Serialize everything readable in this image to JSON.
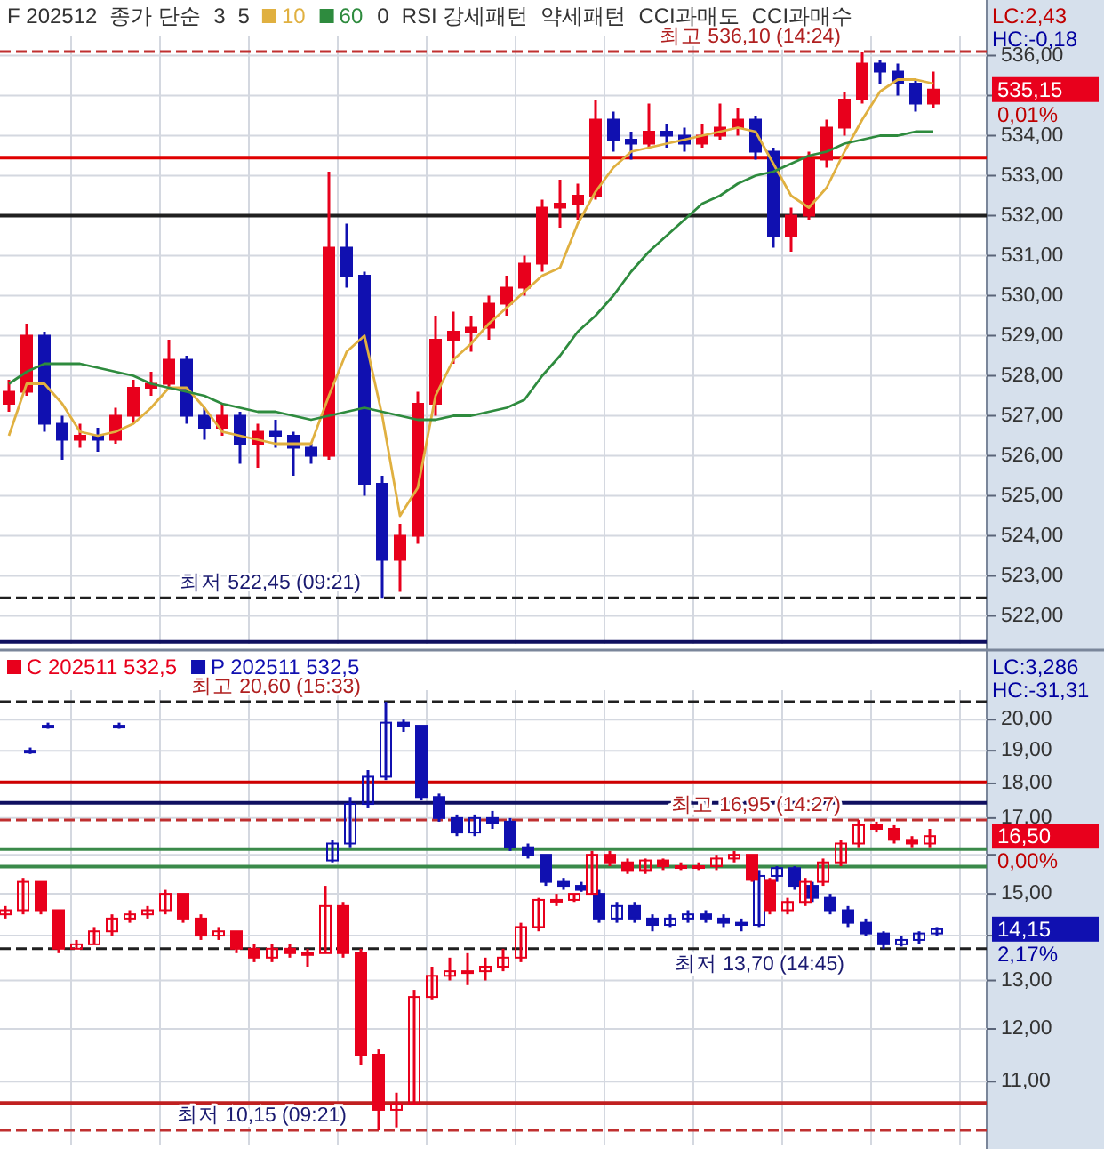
{
  "chart_data": [
    {
      "type": "candlestick",
      "categories": [
        null,
        null,
        null,
        null,
        null,
        null,
        null,
        null,
        null,
        null,
        null,
        null,
        null,
        null,
        null,
        null,
        null,
        null,
        null,
        null,
        null,
        null,
        null,
        null,
        null,
        null,
        null,
        null,
        null,
        null,
        null,
        null,
        null,
        null,
        null,
        null,
        null,
        null,
        null,
        null,
        null,
        null,
        null,
        null,
        null,
        null,
        null,
        null,
        null,
        null,
        null,
        null,
        null
      ],
      "ohlc": [
        [
          527.3,
          527.9,
          527.1,
          527.6
        ],
        [
          527.6,
          529.3,
          527.5,
          529.0
        ],
        [
          529.0,
          529.1,
          526.6,
          526.8
        ],
        [
          526.8,
          527.0,
          525.9,
          526.4
        ],
        [
          526.4,
          526.8,
          526.2,
          526.5
        ],
        [
          526.5,
          526.7,
          526.1,
          526.4
        ],
        [
          526.4,
          527.2,
          526.3,
          527.0
        ],
        [
          527.0,
          527.9,
          526.8,
          527.7
        ],
        [
          527.7,
          528.1,
          527.5,
          527.8
        ],
        [
          527.8,
          528.9,
          527.7,
          528.4
        ],
        [
          528.4,
          528.5,
          526.8,
          527.0
        ],
        [
          527.0,
          527.2,
          526.4,
          526.7
        ],
        [
          526.7,
          527.3,
          526.5,
          527.0
        ],
        [
          527.0,
          527.1,
          525.8,
          526.3
        ],
        [
          526.3,
          526.8,
          525.7,
          526.6
        ],
        [
          526.6,
          526.9,
          526.2,
          526.5
        ],
        [
          526.5,
          526.6,
          525.5,
          526.2
        ],
        [
          526.2,
          526.3,
          525.8,
          526.0
        ],
        [
          526.0,
          533.1,
          525.9,
          531.2
        ],
        [
          531.2,
          531.8,
          530.2,
          530.5
        ],
        [
          530.5,
          530.6,
          525.0,
          525.3
        ],
        [
          525.3,
          525.5,
          522.45,
          523.4
        ],
        [
          523.4,
          524.3,
          522.6,
          524.0
        ],
        [
          524.0,
          527.6,
          523.8,
          527.3
        ],
        [
          527.3,
          529.5,
          527.0,
          528.9
        ],
        [
          528.9,
          529.6,
          528.3,
          529.1
        ],
        [
          529.1,
          529.5,
          528.6,
          529.2
        ],
        [
          529.2,
          530.0,
          528.9,
          529.8
        ],
        [
          529.8,
          530.5,
          529.5,
          530.2
        ],
        [
          530.2,
          531.0,
          530.0,
          530.8
        ],
        [
          530.8,
          532.4,
          530.6,
          532.2
        ],
        [
          532.2,
          532.9,
          531.7,
          532.3
        ],
        [
          532.3,
          532.8,
          531.9,
          532.5
        ],
        [
          532.5,
          534.9,
          532.4,
          534.4
        ],
        [
          534.4,
          534.6,
          533.6,
          533.9
        ],
        [
          533.9,
          534.1,
          533.4,
          533.8
        ],
        [
          533.8,
          534.8,
          533.7,
          534.1
        ],
        [
          534.1,
          534.3,
          533.7,
          534.0
        ],
        [
          534.0,
          534.2,
          533.6,
          533.8
        ],
        [
          533.8,
          534.3,
          533.7,
          534.0
        ],
        [
          534.0,
          534.8,
          533.9,
          534.2
        ],
        [
          534.2,
          534.7,
          534.0,
          534.4
        ],
        [
          534.4,
          534.5,
          533.4,
          533.6
        ],
        [
          533.6,
          533.7,
          531.2,
          531.5
        ],
        [
          531.5,
          532.2,
          531.1,
          532.0
        ],
        [
          532.0,
          533.6,
          531.9,
          533.4
        ],
        [
          533.4,
          534.4,
          533.2,
          534.2
        ],
        [
          534.2,
          535.1,
          534.0,
          534.9
        ],
        [
          534.9,
          536.1,
          534.8,
          535.8
        ],
        [
          535.8,
          535.9,
          535.3,
          535.6
        ],
        [
          535.6,
          535.8,
          535.0,
          535.3
        ],
        [
          535.3,
          535.4,
          534.6,
          534.8
        ],
        [
          534.8,
          535.6,
          534.7,
          535.15
        ]
      ],
      "colors": [
        "#e8001c",
        "#e8001c",
        "#1010b0",
        "#1010b0",
        "#e8001c",
        "#1010b0",
        "#e8001c",
        "#e8001c",
        "#e8001c",
        "#e8001c",
        "#1010b0",
        "#1010b0",
        "#e8001c",
        "#1010b0",
        "#e8001c",
        "#1010b0",
        "#1010b0",
        "#1010b0",
        "#e8001c",
        "#1010b0",
        "#1010b0",
        "#1010b0",
        "#e8001c",
        "#e8001c",
        "#e8001c",
        "#e8001c",
        "#e8001c",
        "#e8001c",
        "#e8001c",
        "#e8001c",
        "#e8001c",
        "#e8001c",
        "#e8001c",
        "#e8001c",
        "#1010b0",
        "#1010b0",
        "#e8001c",
        "#1010b0",
        "#1010b0",
        "#e8001c",
        "#e8001c",
        "#e8001c",
        "#1010b0",
        "#1010b0",
        "#e8001c",
        "#e8001c",
        "#e8001c",
        "#e8001c",
        "#e8001c",
        "#1010b0",
        "#1010b0",
        "#1010b0",
        "#e8001c"
      ],
      "series": [
        {
          "name": "10",
          "type": "line",
          "color": "#e0b040",
          "values": [
            526.5,
            527.8,
            527.8,
            527.3,
            526.6,
            526.5,
            526.6,
            526.8,
            527.2,
            527.7,
            527.7,
            527.2,
            526.6,
            526.5,
            526.4,
            526.3,
            526.3,
            526.3,
            527.5,
            528.6,
            529.0,
            527.0,
            524.5,
            525.2,
            527.5,
            528.4,
            528.8,
            529.3,
            529.7,
            530.1,
            530.5,
            530.7,
            531.8,
            532.6,
            533.2,
            533.6,
            533.7,
            533.8,
            533.9,
            534.0,
            534.1,
            534.2,
            534.1,
            533.3,
            532.5,
            532.2,
            532.7,
            533.6,
            534.4,
            535.1,
            535.4,
            535.4,
            535.3
          ]
        },
        {
          "name": "60",
          "type": "line",
          "color": "#2e8b3e",
          "values": [
            527.8,
            528.1,
            528.3,
            528.3,
            528.3,
            528.2,
            528.1,
            528.0,
            527.8,
            527.7,
            527.6,
            527.5,
            527.3,
            527.2,
            527.1,
            527.1,
            527.0,
            526.9,
            527.0,
            527.1,
            527.2,
            527.1,
            527.0,
            526.9,
            526.9,
            527.0,
            527.0,
            527.1,
            527.2,
            527.4,
            528.0,
            528.5,
            529.1,
            529.5,
            530.0,
            530.6,
            531.1,
            531.5,
            531.9,
            532.3,
            532.5,
            532.8,
            533.0,
            533.1,
            533.3,
            533.5,
            533.6,
            533.8,
            533.9,
            534.0,
            534.0,
            534.1,
            534.1
          ]
        }
      ],
      "ylim": [
        521.3,
        536.5
      ],
      "yticks": [
        {
          "value": 522,
          "label": "522,00"
        },
        {
          "value": 523,
          "label": "523,00"
        },
        {
          "value": 524,
          "label": "524,00"
        },
        {
          "value": 525,
          "label": "525,00"
        },
        {
          "value": 526,
          "label": "526,00"
        },
        {
          "value": 527,
          "label": "527,00"
        },
        {
          "value": 528,
          "label": "528,00"
        },
        {
          "value": 529,
          "label": "529,00"
        },
        {
          "value": 530,
          "label": "530,00"
        },
        {
          "value": 531,
          "label": "531,00"
        },
        {
          "value": 532,
          "label": "532,00"
        },
        {
          "value": 533,
          "label": "533,00"
        },
        {
          "value": 534,
          "label": "534,00"
        },
        {
          "value": 535,
          "label": null
        },
        {
          "value": 536,
          "label": "536,00"
        }
      ],
      "tick_labels": "y",
      "grid": true,
      "legend": "top left",
      "ref_lines": [
        {
          "axis": "y",
          "value": 536.1,
          "color": "#c03030",
          "line_style": "dashed"
        },
        {
          "axis": "y",
          "value": 533.45,
          "color": "#e00000",
          "line_style": "solid"
        },
        {
          "axis": "y",
          "value": 532.0,
          "color": "#202020",
          "line_style": "solid"
        },
        {
          "axis": "y",
          "value": 522.45,
          "color": "#202020",
          "line_style": "dashed"
        },
        {
          "axis": "y",
          "value": 521.35,
          "color": "#101060",
          "line_style": "solid"
        }
      ],
      "annotations": [
        "F 202512",
        "종가 단순",
        "3",
        "5",
        "0",
        "RSI 강세패턴",
        "약세패턴",
        "CCI과매도",
        "CCI과매수",
        "LC:2,43",
        "HC:-0,18",
        "535,15",
        "0,01%",
        {
          "text": "최고 536,10 (14:24)",
          "y": 536.1
        },
        {
          "text": "최저 522,45 (09:21)",
          "y": 522.45
        }
      ]
    },
    {
      "type": "candlestick",
      "categories": [
        null,
        null,
        null,
        null,
        null,
        null,
        null,
        null,
        null,
        null,
        null,
        null,
        null,
        null,
        null,
        null,
        null,
        null,
        null,
        null,
        null,
        null,
        null,
        null,
        null,
        null,
        null,
        null,
        null,
        null,
        null,
        null,
        null,
        null,
        null,
        null,
        null,
        null,
        null,
        null,
        null,
        null,
        null,
        null,
        null,
        null,
        null,
        null,
        null,
        null,
        null,
        null,
        null
      ],
      "series": [
        {
          "name": "C 202511 532,5",
          "color": "#e8001c",
          "ohlc": [
            [
              14.5,
              14.7,
              14.4,
              14.6
            ],
            [
              14.6,
              15.4,
              14.5,
              15.3
            ],
            [
              15.3,
              15.3,
              14.5,
              14.6
            ],
            [
              14.6,
              14.6,
              13.6,
              13.7
            ],
            [
              13.7,
              13.9,
              13.7,
              13.8
            ],
            [
              13.8,
              14.2,
              13.8,
              14.1
            ],
            [
              14.1,
              14.5,
              14.0,
              14.4
            ],
            [
              14.4,
              14.6,
              14.3,
              14.5
            ],
            [
              14.5,
              14.7,
              14.4,
              14.6
            ],
            [
              14.6,
              15.1,
              14.5,
              15.0
            ],
            [
              15.0,
              15.0,
              14.3,
              14.4
            ],
            [
              14.4,
              14.5,
              13.9,
              14.0
            ],
            [
              14.0,
              14.2,
              13.9,
              14.1
            ],
            [
              14.1,
              14.1,
              13.6,
              13.7
            ],
            [
              13.7,
              13.8,
              13.4,
              13.5
            ],
            [
              13.5,
              13.8,
              13.4,
              13.7
            ],
            [
              13.7,
              13.8,
              13.5,
              13.6
            ],
            [
              13.6,
              13.7,
              13.3,
              13.6
            ],
            [
              13.6,
              15.2,
              13.6,
              14.7
            ],
            [
              14.7,
              14.8,
              13.5,
              13.6
            ],
            [
              13.6,
              13.7,
              11.3,
              11.5
            ],
            [
              11.5,
              11.6,
              10.15,
              10.5
            ],
            [
              10.5,
              10.8,
              10.2,
              10.6
            ],
            [
              10.6,
              12.8,
              10.6,
              12.65
            ],
            [
              12.65,
              13.3,
              12.6,
              13.1
            ],
            [
              13.1,
              13.5,
              13.0,
              13.2
            ],
            [
              13.2,
              13.6,
              12.9,
              13.2
            ],
            [
              13.2,
              13.5,
              13.0,
              13.3
            ],
            [
              13.3,
              13.7,
              13.2,
              13.5
            ],
            [
              13.5,
              14.3,
              13.4,
              14.2
            ],
            [
              14.2,
              14.9,
              14.1,
              14.85
            ],
            [
              14.85,
              15.0,
              14.7,
              14.85
            ],
            [
              14.85,
              15.0,
              14.8,
              15.0
            ],
            [
              15.0,
              16.1,
              15.0,
              16.0
            ],
            [
              16.0,
              16.1,
              15.7,
              15.8
            ],
            [
              15.8,
              15.9,
              15.5,
              15.6
            ],
            [
              15.6,
              15.9,
              15.5,
              15.85
            ],
            [
              15.85,
              15.9,
              15.6,
              15.7
            ],
            [
              15.7,
              15.8,
              15.6,
              15.7
            ],
            [
              15.7,
              15.8,
              15.6,
              15.7
            ],
            [
              15.7,
              16.0,
              15.6,
              15.9
            ],
            [
              15.9,
              16.1,
              15.8,
              16.0
            ],
            [
              16.0,
              16.0,
              15.3,
              15.35
            ],
            [
              15.35,
              15.4,
              14.5,
              14.6
            ],
            [
              14.6,
              14.9,
              14.5,
              14.8
            ],
            [
              14.8,
              15.4,
              14.7,
              15.3
            ],
            [
              15.3,
              15.9,
              15.2,
              15.8
            ],
            [
              15.8,
              16.4,
              15.7,
              16.3
            ],
            [
              16.3,
              16.95,
              16.2,
              16.8
            ],
            [
              16.8,
              16.9,
              16.6,
              16.7
            ],
            [
              16.7,
              16.8,
              16.3,
              16.4
            ],
            [
              16.4,
              16.5,
              16.2,
              16.3
            ],
            [
              16.3,
              16.7,
              16.2,
              16.5
            ]
          ]
        },
        {
          "name": "P 202511 532,5",
          "color": "#1010b0",
          "ohlc": [
            null,
            [
              19.0,
              19.1,
              18.9,
              19.0
            ],
            [
              19.8,
              19.9,
              19.7,
              19.8
            ],
            null,
            null,
            null,
            [
              19.8,
              19.9,
              19.7,
              19.8
            ],
            null,
            null,
            null,
            null,
            null,
            null,
            null,
            null,
            null,
            null,
            null,
            [
              15.85,
              16.4,
              15.8,
              16.3
            ],
            [
              16.3,
              17.6,
              16.2,
              17.4
            ],
            [
              17.4,
              18.4,
              17.3,
              18.2
            ],
            [
              18.2,
              20.6,
              18.1,
              19.9
            ],
            [
              19.9,
              20.0,
              19.6,
              19.8
            ],
            [
              19.8,
              19.8,
              17.5,
              17.6
            ],
            [
              17.6,
              17.7,
              16.9,
              17.0
            ],
            [
              17.0,
              17.1,
              16.5,
              16.6
            ],
            [
              16.6,
              17.1,
              16.5,
              17.0
            ],
            [
              17.0,
              17.2,
              16.7,
              16.85
            ],
            [
              16.9,
              17.0,
              16.1,
              16.2
            ],
            [
              16.2,
              16.3,
              15.9,
              16.0
            ],
            [
              16.0,
              16.0,
              15.2,
              15.3
            ],
            [
              15.3,
              15.4,
              15.1,
              15.2
            ],
            [
              15.2,
              15.3,
              15.05,
              15.1
            ],
            [
              15.0,
              15.1,
              14.3,
              14.4
            ],
            [
              14.4,
              14.8,
              14.3,
              14.7
            ],
            [
              14.7,
              14.8,
              14.3,
              14.4
            ],
            [
              14.4,
              14.5,
              14.1,
              14.25
            ],
            [
              14.25,
              14.5,
              14.2,
              14.4
            ],
            [
              14.4,
              14.6,
              14.3,
              14.5
            ],
            [
              14.5,
              14.6,
              14.3,
              14.4
            ],
            [
              14.4,
              14.5,
              14.2,
              14.3
            ],
            [
              14.3,
              14.4,
              14.1,
              14.25
            ],
            [
              14.25,
              15.6,
              14.2,
              15.45
            ],
            [
              15.45,
              15.7,
              15.3,
              15.65
            ],
            [
              15.65,
              15.7,
              15.1,
              15.2
            ],
            [
              15.2,
              15.3,
              14.8,
              14.9
            ],
            [
              14.9,
              15.0,
              14.5,
              14.6
            ],
            [
              14.6,
              14.7,
              14.2,
              14.3
            ],
            [
              14.3,
              14.4,
              14.0,
              14.05
            ],
            [
              14.05,
              14.1,
              13.7,
              13.8
            ],
            [
              13.8,
              14.0,
              13.75,
              13.9
            ],
            [
              13.9,
              14.1,
              13.8,
              14.05
            ],
            [
              14.05,
              14.2,
              14.0,
              14.15
            ]
          ]
        }
      ],
      "log": true,
      "ylim": [
        9.9,
        21.0
      ],
      "yticks": [
        {
          "value": 11,
          "label": "11,00"
        },
        {
          "value": 12,
          "label": "12,00"
        },
        {
          "value": 13,
          "label": "13,00"
        },
        {
          "value": 14,
          "label": null
        },
        {
          "value": 15,
          "label": "15,00"
        },
        {
          "value": 16,
          "label": null
        },
        {
          "value": 17,
          "label": "17,00"
        },
        {
          "value": 18,
          "label": "18,00"
        },
        {
          "value": 19,
          "label": "19,00"
        },
        {
          "value": 20,
          "label": "20,00"
        }
      ],
      "tick_labels": "y",
      "grid": true,
      "legend": "top left",
      "ref_lines": [
        {
          "axis": "y",
          "value": 20.6,
          "color": "#202020",
          "line_style": "dashed"
        },
        {
          "axis": "y",
          "value": 18.03,
          "color": "#d00000",
          "line_style": "solid"
        },
        {
          "axis": "y",
          "value": 17.43,
          "color": "#101060",
          "line_style": "solid"
        },
        {
          "axis": "y",
          "value": 16.95,
          "color": "#c03030",
          "line_style": "dashed"
        },
        {
          "axis": "y",
          "value": 16.15,
          "color": "#3a8a4a",
          "line_style": "solid"
        },
        {
          "axis": "y",
          "value": 15.69,
          "color": "#3a8a4a",
          "line_style": "solid"
        },
        {
          "axis": "y",
          "value": 13.7,
          "color": "#202020",
          "line_style": "dashed"
        },
        {
          "axis": "y",
          "value": 10.62,
          "color": "#c02020",
          "line_style": "solid"
        },
        {
          "axis": "y",
          "value": 10.15,
          "color": "#c03030",
          "line_style": "dashed"
        }
      ],
      "annotations": [
        "LC:3,286",
        "HC:-31,31",
        "16,50",
        "0,00%",
        "14,15",
        "2,17%",
        {
          "text": "최고 20,60 (15:33)",
          "y": 20.6
        },
        "최저 10,15 (09:21)",
        {
          "text": "최고 16,95 (14:27)",
          "y": 16.95
        },
        "최저 13,70 (14:45)"
      ]
    }
  ]
}
